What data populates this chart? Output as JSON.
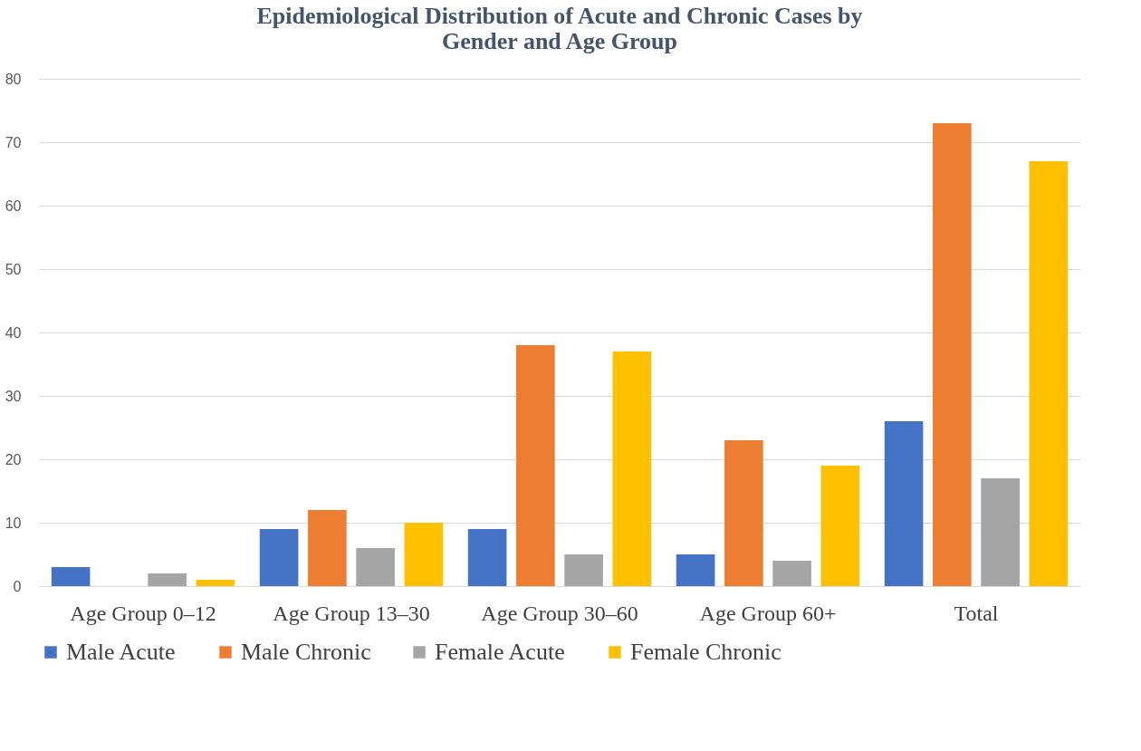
{
  "chart_data": {
    "type": "bar",
    "title": "Epidemiological Distribution of Acute and Chronic Cases by Gender and Age Group",
    "categories": [
      "Age Group 0–12",
      "Age Group 13–30",
      "Age Group 30–60",
      "Age Group 60+",
      "Total"
    ],
    "series": [
      {
        "name": "Male Acute",
        "color": "#4472c4",
        "values": [
          3,
          9,
          9,
          5,
          26
        ]
      },
      {
        "name": "Male Chronic",
        "color": "#ed7d31",
        "values": [
          0,
          12,
          38,
          23,
          73
        ]
      },
      {
        "name": "Female Acute",
        "color": "#a5a5a5",
        "values": [
          2,
          6,
          5,
          4,
          17
        ]
      },
      {
        "name": "Female Chronic",
        "color": "#ffc000",
        "values": [
          1,
          10,
          37,
          19,
          67
        ]
      }
    ],
    "ylim": [
      0,
      80
    ],
    "yticks": [
      0,
      10,
      20,
      30,
      40,
      50,
      60,
      70,
      80
    ],
    "grid": "y",
    "legend": "bottom"
  }
}
